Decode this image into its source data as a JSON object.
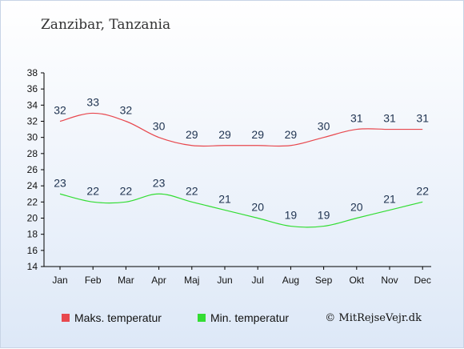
{
  "location": "Zanzibar, Tanzania",
  "credit": "© MitRejseVejr.dk",
  "chart_data": {
    "type": "line",
    "categories": [
      "Jan",
      "Feb",
      "Mar",
      "Apr",
      "Maj",
      "Jun",
      "Jul",
      "Aug",
      "Sep",
      "Okt",
      "Nov",
      "Dec"
    ],
    "series": [
      {
        "name": "Maks. temperatur",
        "color": "#e8484e",
        "values": [
          32,
          33,
          32,
          30,
          29,
          29,
          29,
          29,
          30,
          31,
          31,
          31
        ]
      },
      {
        "name": "Min. temperatur",
        "color": "#33dd33",
        "values": [
          23,
          22,
          22,
          23,
          22,
          21,
          20,
          19,
          19,
          20,
          21,
          22
        ]
      }
    ],
    "ylim": [
      14,
      38
    ],
    "yticks": [
      14,
      16,
      18,
      20,
      22,
      24,
      26,
      28,
      30,
      32,
      34,
      36,
      38
    ],
    "legend_position": "bottom",
    "grid": false
  }
}
